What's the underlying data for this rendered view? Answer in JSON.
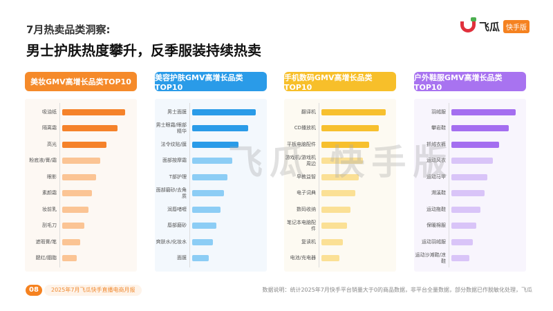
{
  "header": {
    "subtitle": "7月热卖品类洞察:",
    "title": "男士护肤热度攀升，反季服装持续热卖",
    "logo_name": "飞瓜",
    "logo_badge": "快手版"
  },
  "watermark": "飞瓜 快手版",
  "chart_data": [
    {
      "type": "bar",
      "orientation": "horizontal",
      "title": "美妆GMV高增长品类TOP10",
      "color_strong": "#f5822a",
      "color_light": "#fbc494",
      "value_unit": "relative bar length (no axis)",
      "categories": [
        "吸油纸",
        "隔离霜",
        "高光",
        "粉底液/膏/霜",
        "眼影",
        "素颜霜",
        "妆前乳",
        "刮毛刀",
        "遮瑕膏/笔",
        "腮红/胭脂"
      ],
      "values": [
        91,
        80,
        64,
        55,
        49,
        43,
        38,
        32,
        26,
        21
      ]
    },
    {
      "type": "bar",
      "orientation": "horizontal",
      "title": "美容护肤GMV高增长品类TOP10",
      "color_strong": "#2a9be8",
      "color_light": "#8ccdf5",
      "value_unit": "relative bar length (no axis)",
      "categories": [
        "男士面膜",
        "男士眼霜/眼部精华",
        "法令纹贴/膜",
        "面部按摩霜",
        "T部护理",
        "面部磨砂/去角质",
        "润唇啫喱",
        "唇部磨砂",
        "爽肤水/化妆水",
        "面膜"
      ],
      "values": [
        92,
        81,
        67,
        58,
        51,
        46,
        41,
        35,
        30,
        24
      ]
    },
    {
      "type": "bar",
      "orientation": "horizontal",
      "title": "手机数码GMV高增长品类TOP10",
      "color_strong": "#f7c02e",
      "color_light": "#fbe095",
      "value_unit": "relative bar length (no axis)",
      "categories": [
        "翻译机",
        "CD播放机",
        "平板电脑配件",
        "游戏机/游戏机周边",
        "早教益智",
        "电子词典",
        "数码收纳",
        "笔记本电脑配件",
        "复读机",
        "电池/充电器"
      ],
      "values": [
        93,
        83,
        69,
        60,
        54,
        49,
        42,
        37,
        31,
        26
      ]
    },
    {
      "type": "bar",
      "orientation": "horizontal",
      "title": "户外鞋服GMV高增长品类TOP10",
      "color_strong": "#a46ef0",
      "color_light": "#d9c4f8",
      "value_unit": "relative bar length (no axis)",
      "categories": [
        "羽绒服",
        "攀岩鞋",
        "抓绒衣裤",
        "运动风衣",
        "运动马甲",
        "溯溪鞋",
        "运动拖鞋",
        "保暖棉服",
        "运动羽绒服",
        "运动沙滩鞋/凉鞋"
      ],
      "values": [
        93,
        83,
        69,
        60,
        52,
        48,
        42,
        36,
        31,
        26
      ]
    }
  ],
  "panel_header_colors": [
    "#f58a2a",
    "#2a9be8",
    "#f7bf2a",
    "#a873f0"
  ],
  "panel_bg_colors": [
    "#fdf8f3",
    "#f3f8fd",
    "#fdfaf2",
    "#f8f5fd"
  ],
  "footer": {
    "page": "08",
    "report": "2025年7月飞瓜快手直播电商月报",
    "note": "数据说明：统计2025年7月快手平台销量大于0的商品数据，非平台全量数据，部分数据已作脱敏化处理，飞瓜"
  }
}
